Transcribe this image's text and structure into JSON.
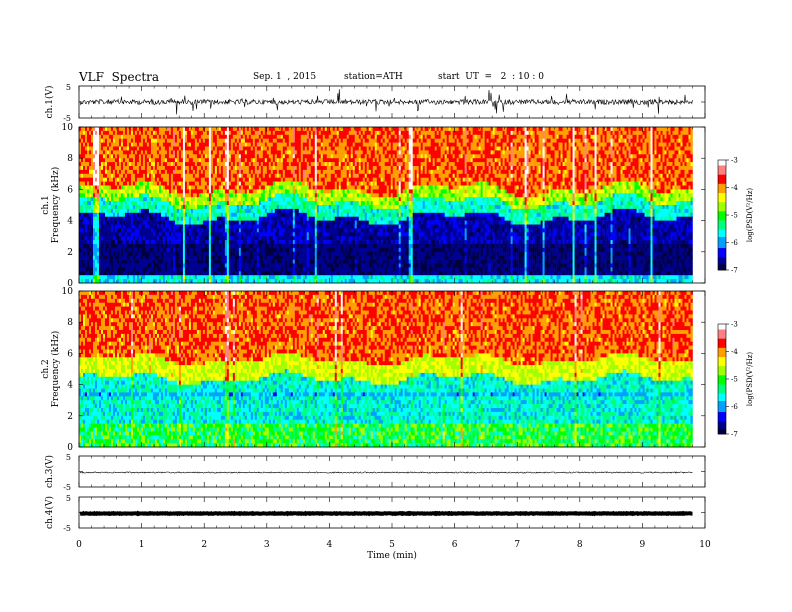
{
  "header": {
    "title": "VLF  Spectra",
    "date": "Sep. 1  , 2015",
    "station": "station=ATH",
    "start": "start  UT  =   2  : 10 : 0"
  },
  "chart_data": [
    {
      "type": "line",
      "panel": "ch1-waveform",
      "ylabel": "ch.1(V)",
      "yticks": [
        "5",
        "-5"
      ],
      "ylim": [
        -5,
        5
      ],
      "xlim": [
        0,
        10
      ]
    },
    {
      "type": "heatmap",
      "panel": "ch1-spectrogram",
      "ylabel": "ch.1\nFrequency  (kHz)",
      "ylabel_line1": "ch.1",
      "ylabel_line2": "Frequency  (kHz)",
      "yticks": [
        "0",
        "2",
        "4",
        "6",
        "8",
        "10"
      ],
      "ylim": [
        0,
        10
      ],
      "xlim": [
        0,
        10
      ],
      "data_end_min": 9.8,
      "colorbar": {
        "label": "log(PSD(V²/Hz)",
        "ticks": [
          "-3",
          "-4",
          "-5",
          "-6",
          "-7"
        ],
        "range": [
          -7,
          -3
        ]
      }
    },
    {
      "type": "heatmap",
      "panel": "ch2-spectrogram",
      "ylabel_line1": "ch.2",
      "ylabel_line2": "Frequency  (kHz)",
      "yticks": [
        "0",
        "2",
        "4",
        "6",
        "8",
        "10"
      ],
      "ylim": [
        0,
        10
      ],
      "xlim": [
        0,
        10
      ],
      "data_end_min": 9.8,
      "colorbar": {
        "label": "log(PSD(V²/Hz)",
        "ticks": [
          "-3",
          "-4",
          "-5",
          "-6",
          "-7"
        ],
        "range": [
          -7,
          -3
        ]
      }
    },
    {
      "type": "line",
      "panel": "ch3-waveform",
      "ylabel": "ch.3(V)",
      "yticks": [
        "5",
        "-5"
      ],
      "ylim": [
        -5,
        5
      ]
    },
    {
      "type": "line",
      "panel": "ch4-waveform",
      "ylabel": "ch.4(V)",
      "yticks": [
        "5",
        "-5"
      ],
      "ylim": [
        -5,
        5
      ]
    }
  ],
  "xaxis": {
    "label": "Time  (min)",
    "ticks": [
      "0",
      "1",
      "2",
      "3",
      "4",
      "5",
      "6",
      "7",
      "8",
      "9",
      "10"
    ]
  },
  "colors": {
    "colormap": [
      "#000040",
      "#000090",
      "#0000ff",
      "#00a0ff",
      "#00ffff",
      "#00ff80",
      "#00ff00",
      "#a0ff00",
      "#ffff00",
      "#ffa000",
      "#ff0000",
      "#ff8080",
      "#ffffff"
    ]
  }
}
